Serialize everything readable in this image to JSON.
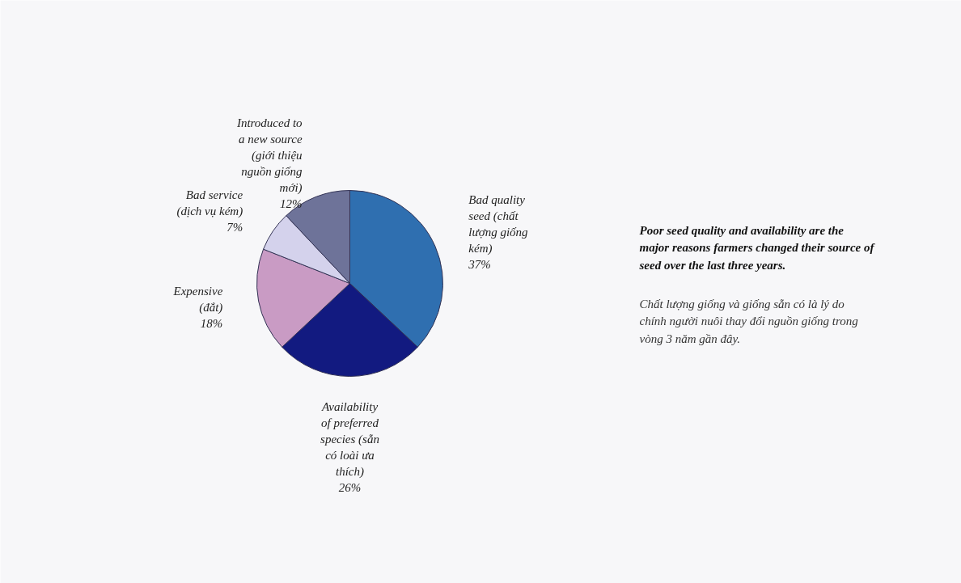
{
  "chart_data": {
    "type": "pie",
    "categories": [
      "Bad quality seed (chất lượng giống kém)",
      "Availability of preferred species (sẵn có loài ưa thích)",
      "Expensive (đắt)",
      "Bad service (dịch vụ kém)",
      "Introduced to a new source (giới thiệu nguồn giống mới)"
    ],
    "values": [
      37,
      26,
      18,
      7,
      12
    ],
    "colors": [
      "#2f6fb0",
      "#121a80",
      "#c99bc4",
      "#d4d2ec",
      "#6e7399"
    ],
    "value_labels": [
      "37%",
      "26%",
      "18%",
      "7%",
      "12%"
    ],
    "annotations": [
      "Poor seed quality and availability are the major reasons farmers changed their source of seed over the last three years.",
      "Chất lượng giống và giống sẵn có là lý do chính người nuôi thay đổi nguồn giống trong vòng 3 năm gần đây."
    ]
  }
}
